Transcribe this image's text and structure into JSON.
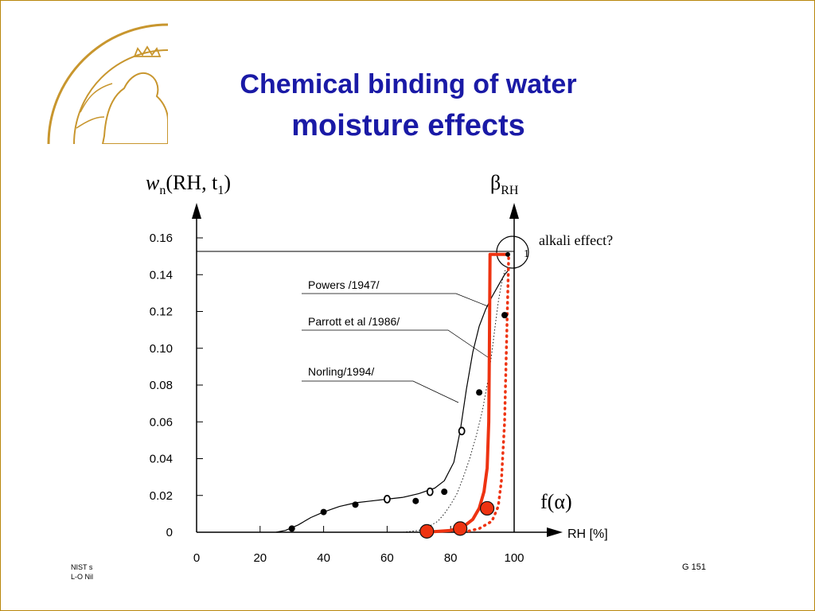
{
  "slide": {
    "title_line1": "Chemical binding of water",
    "title_line2": "moisture effects",
    "footer_left_1": "NIST s",
    "footer_left_2": "L-O Nil",
    "footer_right": "G 151"
  },
  "colors": {
    "title": "#1a1aa6",
    "model": "#ee3311",
    "axis": "#000000",
    "seal": "#c8962e"
  },
  "chart_data": {
    "type": "line",
    "y_axis_left_label_main": "w",
    "y_axis_left_label_sub": "n",
    "y_axis_left_label_tail": "(RH, t",
    "y_axis_left_label_sub2": "1",
    "y_axis_left_label_end": ")",
    "y_axis_right_label_main": "β",
    "y_axis_right_label_sub": "RH",
    "xlabel": "RH [%]",
    "x_ticks": [
      0,
      20,
      40,
      60,
      80,
      100
    ],
    "x_tick_labels": [
      "0",
      "20",
      "40",
      "60",
      "80",
      "100"
    ],
    "y_ticks": [
      0,
      0.02,
      0.04,
      0.06,
      0.08,
      0.1,
      0.12,
      0.14,
      0.16
    ],
    "y_tick_labels": [
      "0",
      "0.02",
      "0.04",
      "0.06",
      "0.08",
      "0.10",
      "0.12",
      "0.14",
      "0.16"
    ],
    "xlim": [
      0,
      100
    ],
    "ylim": [
      0,
      0.16
    ],
    "right_axis_label_1": "1",
    "f_alpha_label": "f(α)",
    "alkali_label": "alkali effect?",
    "annotations": [
      {
        "text": "Powers /1947/",
        "series": "Powers"
      },
      {
        "text": "Parrott et al /1986/",
        "series": "Parrott"
      },
      {
        "text": "Norling/1994/",
        "series": "Norling"
      }
    ],
    "series": [
      {
        "name": "Powers /1947/",
        "style": "solid-black",
        "x": [
          25,
          28,
          32,
          36,
          40,
          45,
          50,
          55,
          60,
          65,
          70,
          75,
          78,
          81,
          83,
          85,
          87,
          89,
          91,
          93,
          95,
          97,
          98
        ],
        "y": [
          0,
          0.001,
          0.004,
          0.008,
          0.011,
          0.014,
          0.016,
          0.017,
          0.018,
          0.019,
          0.021,
          0.024,
          0.028,
          0.038,
          0.055,
          0.078,
          0.098,
          0.112,
          0.121,
          0.128,
          0.134,
          0.14,
          0.142
        ]
      },
      {
        "name": "Parrott et al /1986/",
        "style": "dotted-black",
        "x": [
          65,
          70,
          73,
          76,
          78,
          80,
          82,
          84,
          86,
          88,
          90,
          92,
          93,
          94,
          95,
          96,
          97,
          98
        ],
        "y": [
          0,
          0.001,
          0.003,
          0.006,
          0.01,
          0.015,
          0.021,
          0.03,
          0.04,
          0.052,
          0.066,
          0.085,
          0.098,
          0.112,
          0.125,
          0.135,
          0.142,
          0.143
        ]
      },
      {
        "name": "model-solid",
        "style": "solid-red",
        "x": [
          72,
          80,
          84,
          87,
          89,
          90.5,
          91.5,
          92,
          92.2,
          92.4,
          97.5
        ],
        "y": [
          0,
          0.001,
          0.003,
          0.007,
          0.013,
          0.022,
          0.035,
          0.06,
          0.1,
          0.151,
          0.151
        ]
      },
      {
        "name": "model-dotted",
        "style": "dotted-red",
        "x": [
          84,
          89,
          93,
          95,
          96,
          97,
          97.5,
          98,
          98.3
        ],
        "y": [
          0,
          0.002,
          0.006,
          0.014,
          0.028,
          0.06,
          0.095,
          0.13,
          0.151
        ]
      }
    ],
    "points_filled": {
      "x": [
        30,
        40,
        50,
        69,
        78,
        89,
        97
      ],
      "y": [
        0.002,
        0.011,
        0.015,
        0.017,
        0.022,
        0.076,
        0.118
      ]
    },
    "points_open": {
      "x": [
        60,
        73.5,
        83.5
      ],
      "y": [
        0.018,
        0.022,
        0.055
      ]
    },
    "points_red": {
      "x": [
        72.5,
        83,
        91.5
      ],
      "y": [
        0.0005,
        0.002,
        0.013
      ]
    }
  }
}
